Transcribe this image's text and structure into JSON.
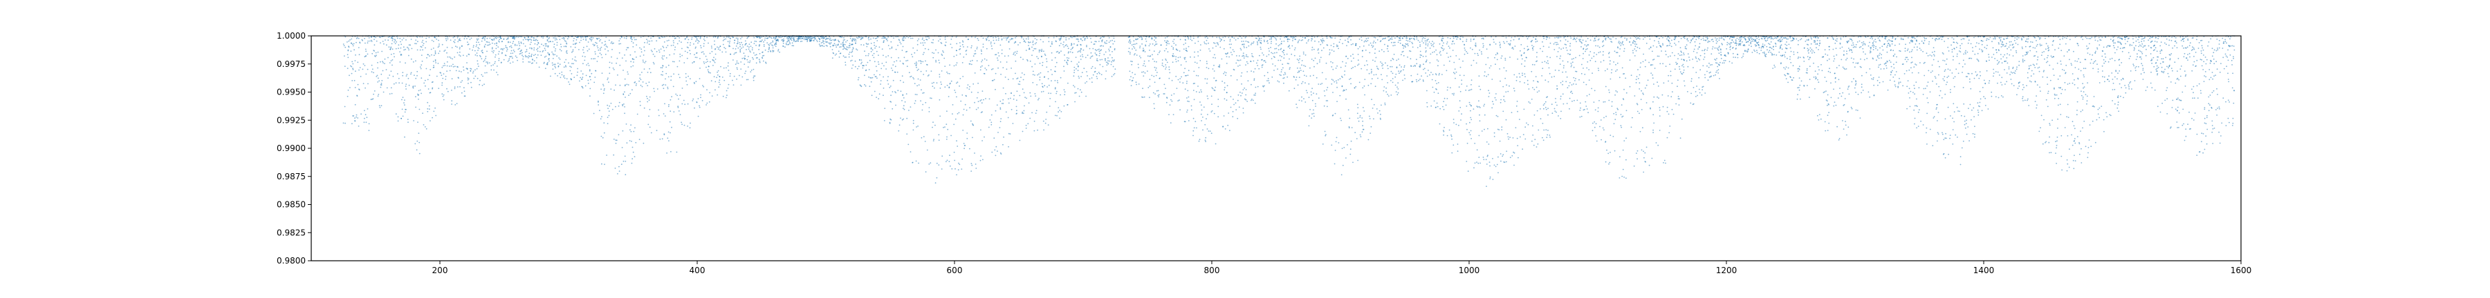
{
  "chart_data": {
    "type": "scatter",
    "title": "",
    "xlabel": "",
    "ylabel": "",
    "xlim": [
      100,
      1600
    ],
    "ylim": [
      0.98,
      1.0
    ],
    "xticks": [
      200,
      400,
      600,
      800,
      1000,
      1200,
      1400,
      1600
    ],
    "yticks": [
      0.98,
      0.9825,
      0.985,
      0.9875,
      0.99,
      0.9925,
      0.995,
      0.9975,
      1.0
    ],
    "ytick_labels": [
      "0.9800",
      "0.9825",
      "0.9850",
      "0.9875",
      "0.9900",
      "0.9925",
      "0.9950",
      "0.9975",
      "1.0000"
    ],
    "grid": false,
    "legend": "none",
    "marker_color": "#1f77b4",
    "series": [
      {
        "x": [
          130,
          140,
          150,
          160,
          170,
          180,
          190,
          200,
          210,
          220,
          230,
          240,
          250,
          260,
          270,
          280,
          290,
          300,
          310,
          320,
          330,
          340,
          350,
          360,
          370,
          380,
          390,
          400,
          410,
          420,
          430,
          440,
          450,
          460,
          470,
          480,
          490,
          500,
          510,
          520,
          530,
          540,
          550,
          560,
          570,
          580,
          590,
          600,
          610,
          620,
          630,
          640,
          650,
          660,
          670,
          680,
          690,
          700,
          710,
          720,
          740,
          750,
          760,
          770,
          780,
          790,
          800,
          810,
          820,
          830,
          840,
          850,
          860,
          870,
          880,
          890,
          900,
          910,
          920,
          930,
          940,
          950,
          960,
          970,
          980,
          990,
          1000,
          1010,
          1020,
          1030,
          1040,
          1050,
          1060,
          1070,
          1080,
          1090,
          1100,
          1110,
          1120,
          1130,
          1140,
          1150,
          1160,
          1170,
          1180,
          1190,
          1200,
          1210,
          1220,
          1230,
          1240,
          1250,
          1260,
          1270,
          1280,
          1290,
          1300,
          1310,
          1320,
          1330,
          1340,
          1350,
          1360,
          1370,
          1380,
          1390,
          1400,
          1410,
          1420,
          1430,
          1440,
          1450,
          1460,
          1470,
          1480,
          1490,
          1500,
          1510,
          1520,
          1530,
          1540,
          1550,
          1560,
          1570,
          1580,
          1590
        ],
        "y": [
          0.991,
          0.9915,
          0.9935,
          0.9945,
          0.9905,
          0.9895,
          0.9915,
          0.9925,
          0.9935,
          0.9945,
          0.9955,
          0.9965,
          0.9975,
          0.9975,
          0.9975,
          0.997,
          0.996,
          0.9955,
          0.995,
          0.993,
          0.9885,
          0.9875,
          0.9885,
          0.9895,
          0.9905,
          0.9895,
          0.9915,
          0.9925,
          0.9935,
          0.9945,
          0.9955,
          0.996,
          0.9975,
          0.9985,
          0.999,
          0.9995,
          0.9995,
          0.999,
          0.998,
          0.997,
          0.9955,
          0.994,
          0.992,
          0.99,
          0.9885,
          0.9875,
          0.9865,
          0.987,
          0.9875,
          0.988,
          0.989,
          0.9895,
          0.99,
          0.991,
          0.9915,
          0.9925,
          0.9935,
          0.9945,
          0.9955,
          0.996,
          0.9955,
          0.9945,
          0.9935,
          0.992,
          0.991,
          0.9905,
          0.99,
          0.9915,
          0.9925,
          0.994,
          0.995,
          0.9955,
          0.995,
          0.9935,
          0.9915,
          0.9895,
          0.9875,
          0.9885,
          0.9905,
          0.9925,
          0.9945,
          0.996,
          0.9955,
          0.9935,
          0.991,
          0.9895,
          0.9875,
          0.9865,
          0.987,
          0.9875,
          0.9885,
          0.9895,
          0.9905,
          0.992,
          0.9935,
          0.9925,
          0.99,
          0.9885,
          0.987,
          0.9865,
          0.9875,
          0.9885,
          0.9905,
          0.9925,
          0.9945,
          0.996,
          0.9975,
          0.998,
          0.9985,
          0.998,
          0.997,
          0.9955,
          0.994,
          0.9925,
          0.991,
          0.99,
          0.9925,
          0.9945,
          0.9955,
          0.995,
          0.9935,
          0.9915,
          0.99,
          0.989,
          0.9885,
          0.9905,
          0.9925,
          0.9945,
          0.9955,
          0.994,
          0.9915,
          0.9895,
          0.988,
          0.9875,
          0.9885,
          0.9905,
          0.9925,
          0.9945,
          0.996,
          0.995,
          0.993,
          0.991,
          0.99,
          0.989,
          0.99,
          0.992
        ],
        "note_y": "lower extent of the dense dot cloud (all points lie between this value and 1.0)"
      }
    ]
  }
}
